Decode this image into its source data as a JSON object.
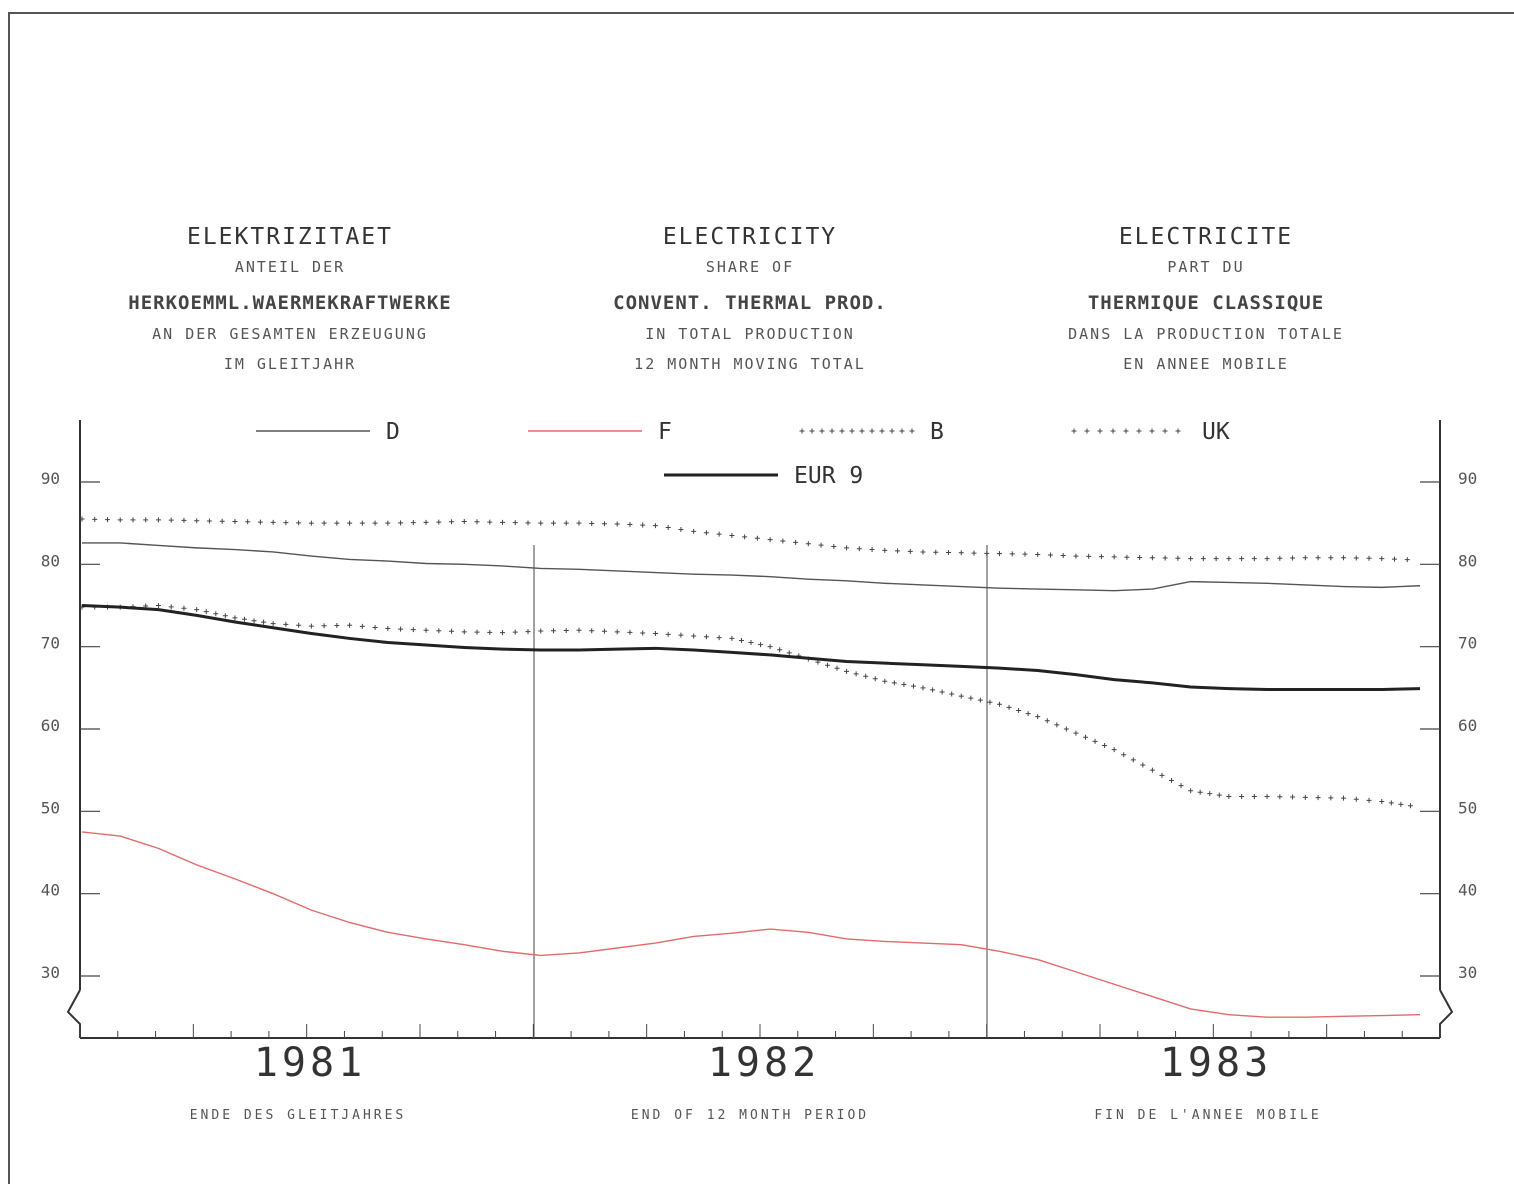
{
  "titles": {
    "de": {
      "line1": "ELEKTRIZITAET",
      "line2": "ANTEIL DER",
      "line3": "HERKOEMML.WAERMEKRAFTWERKE",
      "line4": "AN DER GESAMTEN ERZEUGUNG",
      "line5": "IM GLEITJAHR"
    },
    "en": {
      "line1": "ELECTRICITY",
      "line2": "SHARE OF",
      "line3": "CONVENT. THERMAL PROD.",
      "line4": "IN TOTAL PRODUCTION",
      "line5": "12 MONTH MOVING TOTAL"
    },
    "fr": {
      "line1": "ELECTRICITE",
      "line2": "PART DU",
      "line3": "THERMIQUE CLASSIQUE",
      "line4": "DANS LA PRODUCTION TOTALE",
      "line5": "EN ANNEE MOBILE"
    }
  },
  "footer": {
    "de": "ENDE DES GLEITJAHRES",
    "en": "END OF 12 MONTH PERIOD",
    "fr": "FIN DE L'ANNEE MOBILE"
  },
  "chart_data": {
    "type": "line",
    "ylim": [
      22,
      95
    ],
    "yticks": [
      30,
      40,
      50,
      60,
      70,
      80,
      90
    ],
    "x_groups": [
      "1981",
      "1982",
      "1983"
    ],
    "x": [
      1,
      2,
      3,
      4,
      5,
      6,
      7,
      8,
      9,
      10,
      11,
      12,
      13,
      14,
      15,
      16,
      17,
      18,
      19,
      20,
      21,
      22,
      23,
      24,
      25,
      26,
      27,
      28,
      29,
      30,
      31,
      32,
      33,
      34,
      35,
      36
    ],
    "grid": false,
    "legend": "top",
    "series": [
      {
        "name": "D",
        "color": "#555555",
        "style": "thin",
        "values": [
          82.6,
          82.6,
          82.3,
          82.0,
          81.8,
          81.5,
          81.0,
          80.6,
          80.4,
          80.1,
          80.0,
          79.8,
          79.5,
          79.4,
          79.2,
          79.0,
          78.8,
          78.7,
          78.5,
          78.2,
          78.0,
          77.7,
          77.5,
          77.3,
          77.1,
          77.0,
          76.9,
          76.8,
          77.0,
          77.9,
          77.8,
          77.7,
          77.5,
          77.3,
          77.2,
          77.4
        ]
      },
      {
        "name": "F",
        "color": "#e26a6a",
        "style": "thin",
        "values": [
          47.5,
          47.0,
          45.5,
          43.5,
          41.8,
          40.0,
          38.0,
          36.5,
          35.3,
          34.5,
          33.8,
          33.0,
          32.5,
          32.8,
          33.4,
          34.0,
          34.8,
          35.2,
          35.7,
          35.3,
          34.5,
          34.2,
          34.0,
          33.8,
          33.0,
          32.0,
          30.5,
          29.0,
          27.5,
          26.0,
          25.3,
          25.0,
          25.0,
          25.1,
          25.2,
          25.3
        ]
      },
      {
        "name": "B",
        "color": "#444444",
        "style": "plus",
        "values": [
          74.8,
          74.8,
          75.0,
          74.5,
          73.5,
          72.8,
          72.5,
          72.6,
          72.2,
          72.0,
          71.8,
          71.7,
          71.9,
          72.0,
          71.8,
          71.6,
          71.3,
          71.0,
          70.0,
          68.5,
          67.0,
          65.8,
          65.0,
          64.0,
          63.0,
          61.5,
          59.5,
          57.5,
          55.0,
          52.5,
          51.8,
          51.8,
          51.7,
          51.6,
          51.2,
          50.5
        ]
      },
      {
        "name": "UK",
        "color": "#444444",
        "style": "plus-sparse",
        "values": [
          85.5,
          85.4,
          85.4,
          85.3,
          85.2,
          85.1,
          85.0,
          85.0,
          85.0,
          85.1,
          85.2,
          85.1,
          85.0,
          85.0,
          84.9,
          84.7,
          84.0,
          83.5,
          83.0,
          82.5,
          82.0,
          81.7,
          81.5,
          81.4,
          81.3,
          81.2,
          81.0,
          80.9,
          80.8,
          80.7,
          80.7,
          80.7,
          80.8,
          80.8,
          80.7,
          80.5
        ]
      },
      {
        "name": "EUR 9",
        "color": "#222222",
        "style": "thick",
        "values": [
          75.0,
          74.8,
          74.5,
          73.8,
          73.0,
          72.3,
          71.6,
          71.0,
          70.5,
          70.2,
          69.9,
          69.7,
          69.6,
          69.6,
          69.7,
          69.8,
          69.6,
          69.3,
          69.0,
          68.6,
          68.2,
          68.0,
          67.8,
          67.6,
          67.4,
          67.1,
          66.6,
          66.0,
          65.6,
          65.1,
          64.9,
          64.8,
          64.8,
          64.8,
          64.8,
          64.9
        ]
      }
    ]
  }
}
